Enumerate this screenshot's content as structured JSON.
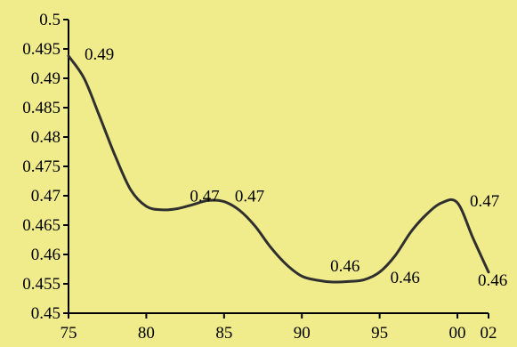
{
  "colors": {
    "background": "#f0ec8c",
    "line": "#2f2f2f",
    "axis": "#000000"
  },
  "chart_data": {
    "type": "line",
    "title": "",
    "xlabel": "",
    "ylabel": "",
    "grid": false,
    "xlim": [
      1975,
      2002
    ],
    "ylim": [
      0.45,
      0.5
    ],
    "x_ticks": [
      {
        "value": 1975,
        "label": "75"
      },
      {
        "value": 1980,
        "label": "80"
      },
      {
        "value": 1985,
        "label": "85"
      },
      {
        "value": 1990,
        "label": "90"
      },
      {
        "value": 1995,
        "label": "95"
      },
      {
        "value": 2000,
        "label": "00"
      },
      {
        "value": 2002,
        "label": "02"
      }
    ],
    "y_ticks": [
      {
        "value": 0.45,
        "label": "0.45"
      },
      {
        "value": 0.455,
        "label": "0.455"
      },
      {
        "value": 0.46,
        "label": "0.46"
      },
      {
        "value": 0.465,
        "label": "0.465"
      },
      {
        "value": 0.47,
        "label": "0.47"
      },
      {
        "value": 0.475,
        "label": "0.475"
      },
      {
        "value": 0.48,
        "label": "0.48"
      },
      {
        "value": 0.485,
        "label": "0.485"
      },
      {
        "value": 0.49,
        "label": "0.49"
      },
      {
        "value": 0.495,
        "label": "0.495"
      },
      {
        "value": 0.5,
        "label": "0.5"
      }
    ],
    "series": [
      {
        "points": [
          {
            "x": 1975,
            "y": 0.4938
          },
          {
            "x": 1976,
            "y": 0.49
          },
          {
            "x": 1977,
            "y": 0.4835
          },
          {
            "x": 1978,
            "y": 0.4768
          },
          {
            "x": 1979,
            "y": 0.471
          },
          {
            "x": 1980,
            "y": 0.4682
          },
          {
            "x": 1981,
            "y": 0.4676
          },
          {
            "x": 1982,
            "y": 0.4678
          },
          {
            "x": 1983,
            "y": 0.4685
          },
          {
            "x": 1984,
            "y": 0.4692
          },
          {
            "x": 1985,
            "y": 0.469
          },
          {
            "x": 1986,
            "y": 0.4675
          },
          {
            "x": 1987,
            "y": 0.4648
          },
          {
            "x": 1988,
            "y": 0.4612
          },
          {
            "x": 1989,
            "y": 0.4583
          },
          {
            "x": 1990,
            "y": 0.4563
          },
          {
            "x": 1991,
            "y": 0.4556
          },
          {
            "x": 1992,
            "y": 0.4553
          },
          {
            "x": 1993,
            "y": 0.4554
          },
          {
            "x": 1994,
            "y": 0.4557
          },
          {
            "x": 1995,
            "y": 0.457
          },
          {
            "x": 1996,
            "y": 0.4598
          },
          {
            "x": 1997,
            "y": 0.4638
          },
          {
            "x": 1998,
            "y": 0.4668
          },
          {
            "x": 1999,
            "y": 0.4688
          },
          {
            "x": 2000,
            "y": 0.4688
          },
          {
            "x": 2001,
            "y": 0.4628
          },
          {
            "x": 2002,
            "y": 0.457
          }
        ]
      }
    ],
    "data_labels": [
      {
        "x": 1975,
        "y": 0.4938,
        "text": "0.49"
      },
      {
        "x": 1982,
        "y": 0.4678,
        "text": "0.47"
      },
      {
        "x": 1985,
        "y": 0.469,
        "text": "0.47"
      },
      {
        "x": 1992,
        "y": 0.4553,
        "text": "0.46"
      },
      {
        "x": 1995,
        "y": 0.457,
        "text": "0.46"
      },
      {
        "x": 2000,
        "y": 0.4688,
        "text": "0.47"
      },
      {
        "x": 2002,
        "y": 0.457,
        "text": "0.46"
      }
    ]
  }
}
